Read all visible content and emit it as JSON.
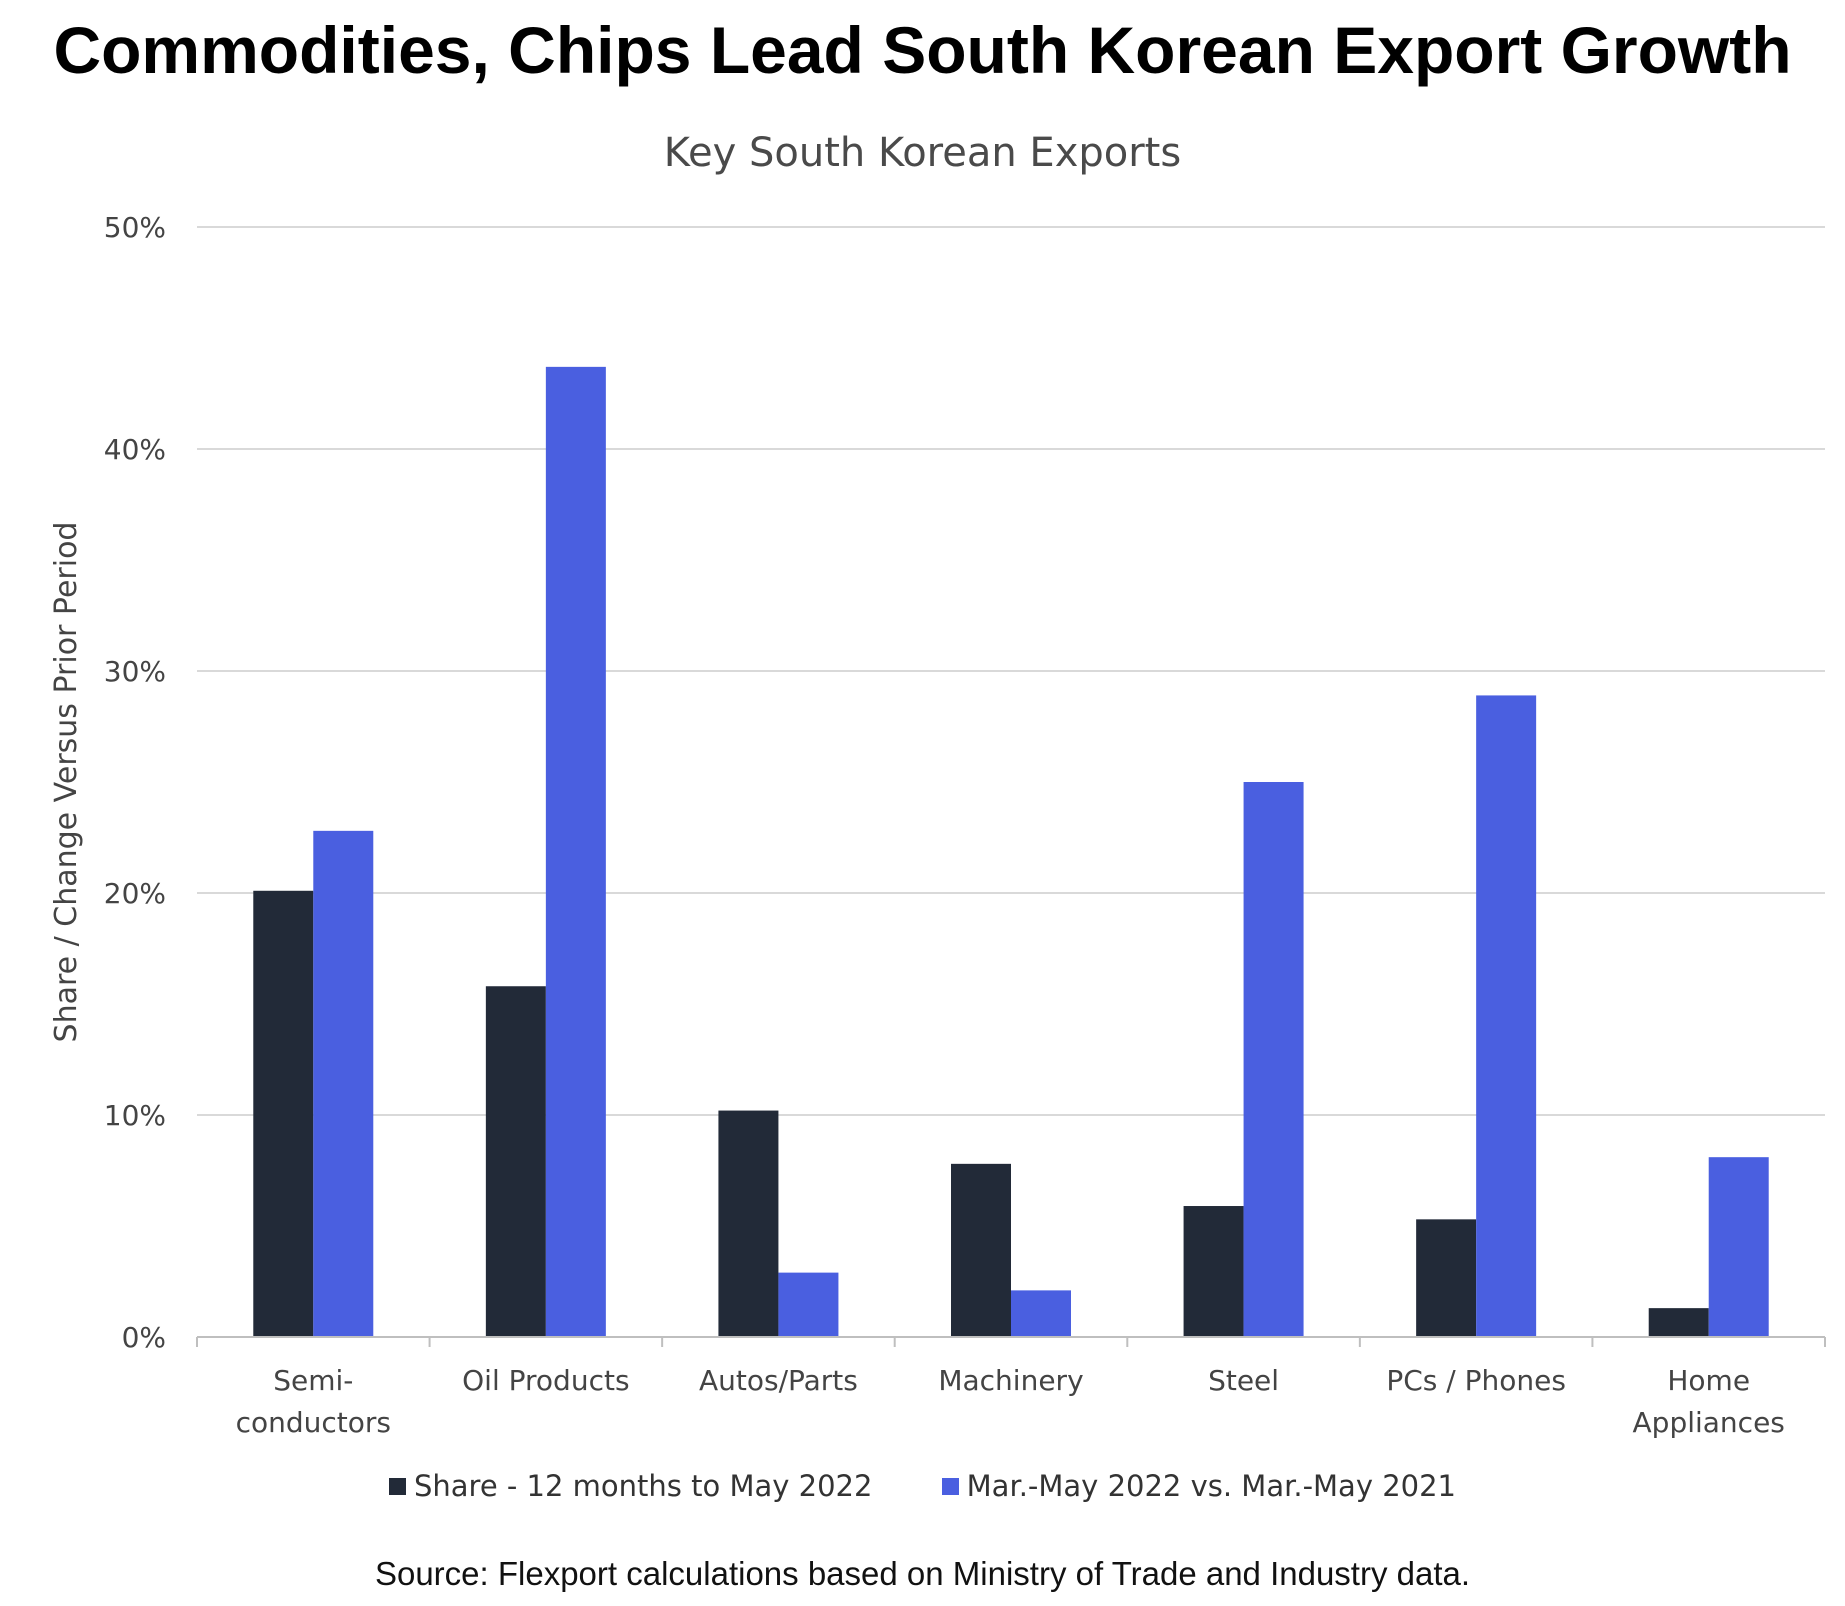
{
  "headline": "Commodities, Chips Lead South Korean Export Growth",
  "source": "Source: Flexport calculations based on Ministry of Trade and Industry data.",
  "colors": {
    "series1": "#222a38",
    "series2": "#4a5fe0",
    "grid": "#d9d9d9",
    "axis": "#bfbfbf"
  },
  "chart_data": {
    "type": "bar",
    "title": "Key South Korean Exports",
    "xlabel": "",
    "ylabel": "Share / Change Versus Prior Period",
    "categories": [
      [
        "Semi-",
        "conductors"
      ],
      [
        "Oil Products"
      ],
      [
        "Autos/Parts"
      ],
      [
        "Machinery"
      ],
      [
        "Steel"
      ],
      [
        "PCs / Phones"
      ],
      [
        "Home",
        "Appliances"
      ]
    ],
    "series": [
      {
        "name": "Share - 12 months to May 2022",
        "values": [
          20.1,
          15.8,
          10.2,
          7.8,
          5.9,
          5.3,
          1.3
        ]
      },
      {
        "name": "Mar.-May 2022 vs. Mar.-May 2021",
        "values": [
          22.8,
          43.7,
          2.9,
          2.1,
          25.0,
          28.9,
          8.1
        ]
      }
    ],
    "ylim": [
      0,
      50
    ],
    "yticks": [
      "0%",
      "10%",
      "20%",
      "30%",
      "40%",
      "50%"
    ],
    "grid": true,
    "legend": "bottom"
  }
}
